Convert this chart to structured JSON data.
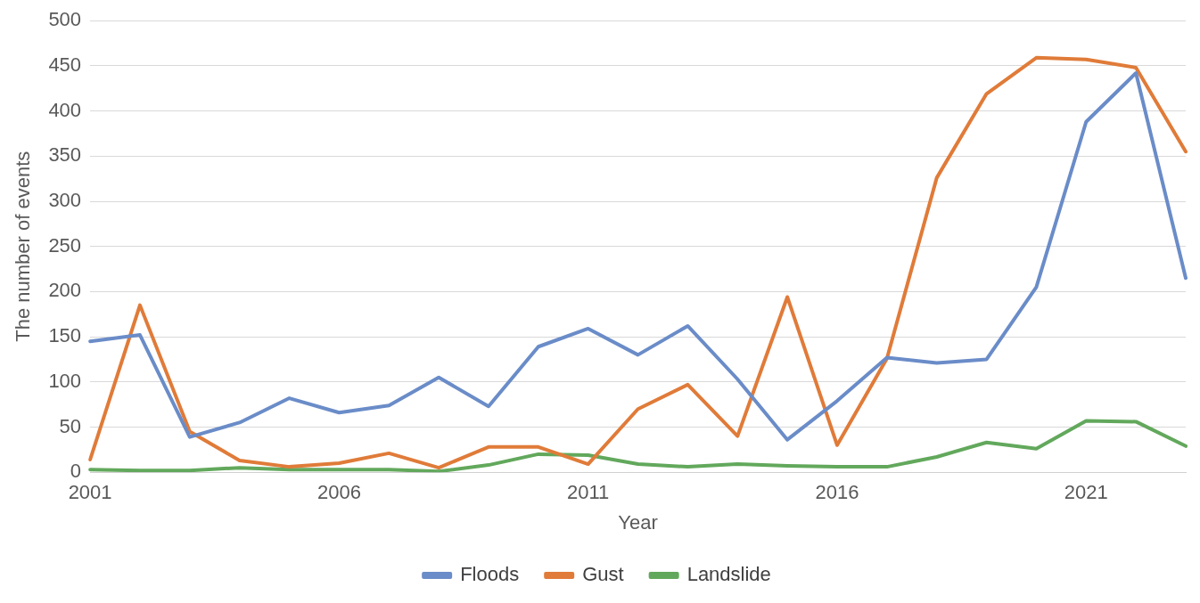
{
  "chart_data": {
    "type": "line",
    "xlabel": "Year",
    "ylabel": "The number of events",
    "categories": [
      "2001",
      null,
      null,
      null,
      null,
      "2006",
      null,
      null,
      null,
      null,
      "2011",
      null,
      null,
      null,
      null,
      "2016",
      null,
      null,
      null,
      null,
      "2021",
      null,
      null
    ],
    "series": [
      {
        "name": "Floods",
        "color": "#6a8cc8",
        "values": [
          145,
          152,
          39,
          55,
          82,
          66,
          74,
          105,
          73,
          139,
          159,
          130,
          162,
          103,
          36,
          79,
          127,
          121,
          125,
          205,
          388,
          442,
          215
        ]
      },
      {
        "name": "Gust",
        "color": "#e07b39",
        "values": [
          14,
          185,
          45,
          13,
          6,
          10,
          21,
          5,
          28,
          28,
          9,
          70,
          97,
          40,
          194,
          30,
          126,
          326,
          419,
          459,
          457,
          448,
          355
        ]
      },
      {
        "name": "Landslide",
        "color": "#62a85c",
        "values": [
          3,
          2,
          2,
          5,
          3,
          3,
          3,
          1,
          8,
          20,
          19,
          9,
          6,
          9,
          7,
          6,
          6,
          17,
          33,
          26,
          57,
          56,
          29
        ]
      }
    ],
    "ylim": [
      0,
      500
    ],
    "yticks": [
      0,
      50,
      100,
      150,
      200,
      250,
      300,
      350,
      400,
      450,
      500
    ],
    "grid": "y",
    "legend": "bottom",
    "marker": "none",
    "line_style": "solid"
  }
}
